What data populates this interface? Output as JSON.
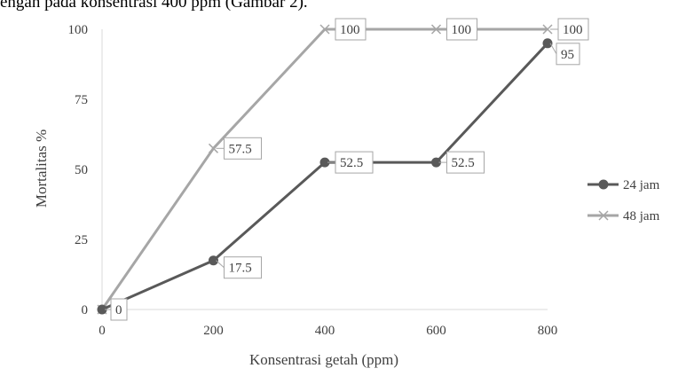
{
  "caption": "engan pada konsentrasi 400 ppm (Gambar 2).",
  "chart_data": {
    "type": "line",
    "x": [
      0,
      200,
      400,
      600,
      800
    ],
    "xlabel": "Konsentrasi getah (ppm)",
    "ylabel": "Mortalitas %",
    "xlim": [
      0,
      800
    ],
    "ylim": [
      0,
      100
    ],
    "xticks": [
      "0",
      "200",
      "400",
      "600",
      "800"
    ],
    "yticks": [
      "0",
      "25",
      "50",
      "75",
      "100"
    ],
    "grid": false,
    "legend_position": "right",
    "series": [
      {
        "name": "24 jam",
        "values": [
          0,
          17.5,
          52.5,
          52.5,
          95
        ],
        "labels": [
          "0",
          "17.5",
          "52.5",
          "52.5",
          "95"
        ],
        "color": "#595959",
        "marker": "circle"
      },
      {
        "name": "48 jam",
        "values": [
          0,
          57.5,
          100,
          100,
          100
        ],
        "labels": [
          "",
          "57.5",
          "100",
          "100",
          "100"
        ],
        "color": "#a6a6a6",
        "marker": "x"
      }
    ]
  }
}
